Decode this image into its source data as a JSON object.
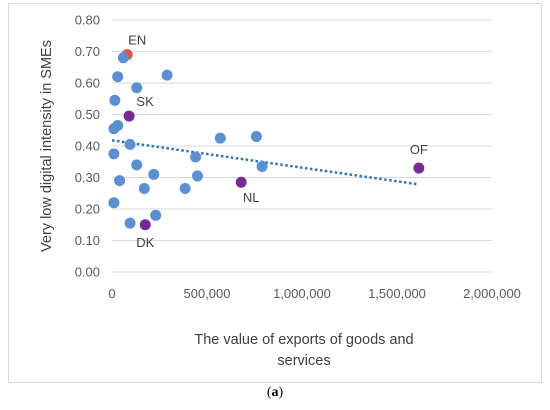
{
  "caption": {
    "open": "(",
    "letter": "a",
    "close": ")"
  },
  "chart_data": {
    "type": "scatter",
    "xlabel_lines": [
      "The value of exports of goods and",
      "services"
    ],
    "ylabel": "Very low digital intensity in SMEs",
    "xlim": [
      0,
      2000000
    ],
    "ylim": [
      0,
      0.8
    ],
    "x_ticks": [
      0,
      500000,
      1000000,
      1500000,
      2000000
    ],
    "x_tick_labels": [
      "0",
      "500,000",
      "1,000,000",
      "1,500,000",
      "2,000,000"
    ],
    "y_ticks": [
      0,
      0.1,
      0.2,
      0.3,
      0.4,
      0.5,
      0.6,
      0.7,
      0.8
    ],
    "y_tick_labels": [
      "0.00",
      "0.10",
      "0.20",
      "0.30",
      "0.40",
      "0.50",
      "0.60",
      "0.70",
      "0.80"
    ],
    "grid": "horizontal",
    "colors": {
      "default": "#5b8fd0",
      "highlight_red": "#e0533e",
      "highlight_purple": "#7a2a98",
      "trendline": "#2e75b6",
      "grid": "#d9d9d9"
    },
    "points": [
      {
        "x": 80000,
        "y": 0.69,
        "label": "EN",
        "color": "highlight_red"
      },
      {
        "x": 60000,
        "y": 0.68
      },
      {
        "x": 290000,
        "y": 0.625
      },
      {
        "x": 30000,
        "y": 0.62
      },
      {
        "x": 130000,
        "y": 0.585
      },
      {
        "x": 15000,
        "y": 0.545
      },
      {
        "x": 90000,
        "y": 0.495,
        "label": "SK",
        "color": "highlight_purple"
      },
      {
        "x": 30000,
        "y": 0.465
      },
      {
        "x": 10000,
        "y": 0.455
      },
      {
        "x": 570000,
        "y": 0.425
      },
      {
        "x": 760000,
        "y": 0.43
      },
      {
        "x": 95000,
        "y": 0.405
      },
      {
        "x": 10000,
        "y": 0.375
      },
      {
        "x": 440000,
        "y": 0.365
      },
      {
        "x": 130000,
        "y": 0.34
      },
      {
        "x": 790000,
        "y": 0.335
      },
      {
        "x": 1615000,
        "y": 0.33,
        "label": "OF",
        "color": "highlight_purple"
      },
      {
        "x": 220000,
        "y": 0.31
      },
      {
        "x": 450000,
        "y": 0.305
      },
      {
        "x": 40000,
        "y": 0.29
      },
      {
        "x": 680000,
        "y": 0.285,
        "label": "NL",
        "color": "highlight_purple"
      },
      {
        "x": 170000,
        "y": 0.265
      },
      {
        "x": 385000,
        "y": 0.265
      },
      {
        "x": 10000,
        "y": 0.22
      },
      {
        "x": 230000,
        "y": 0.18
      },
      {
        "x": 95000,
        "y": 0.155
      },
      {
        "x": 175000,
        "y": 0.15,
        "label": "DK",
        "color": "highlight_purple"
      }
    ],
    "trendline": {
      "type": "linear",
      "x": [
        0,
        1615000
      ],
      "y": [
        0.418,
        0.278
      ],
      "style": "dotted"
    }
  }
}
